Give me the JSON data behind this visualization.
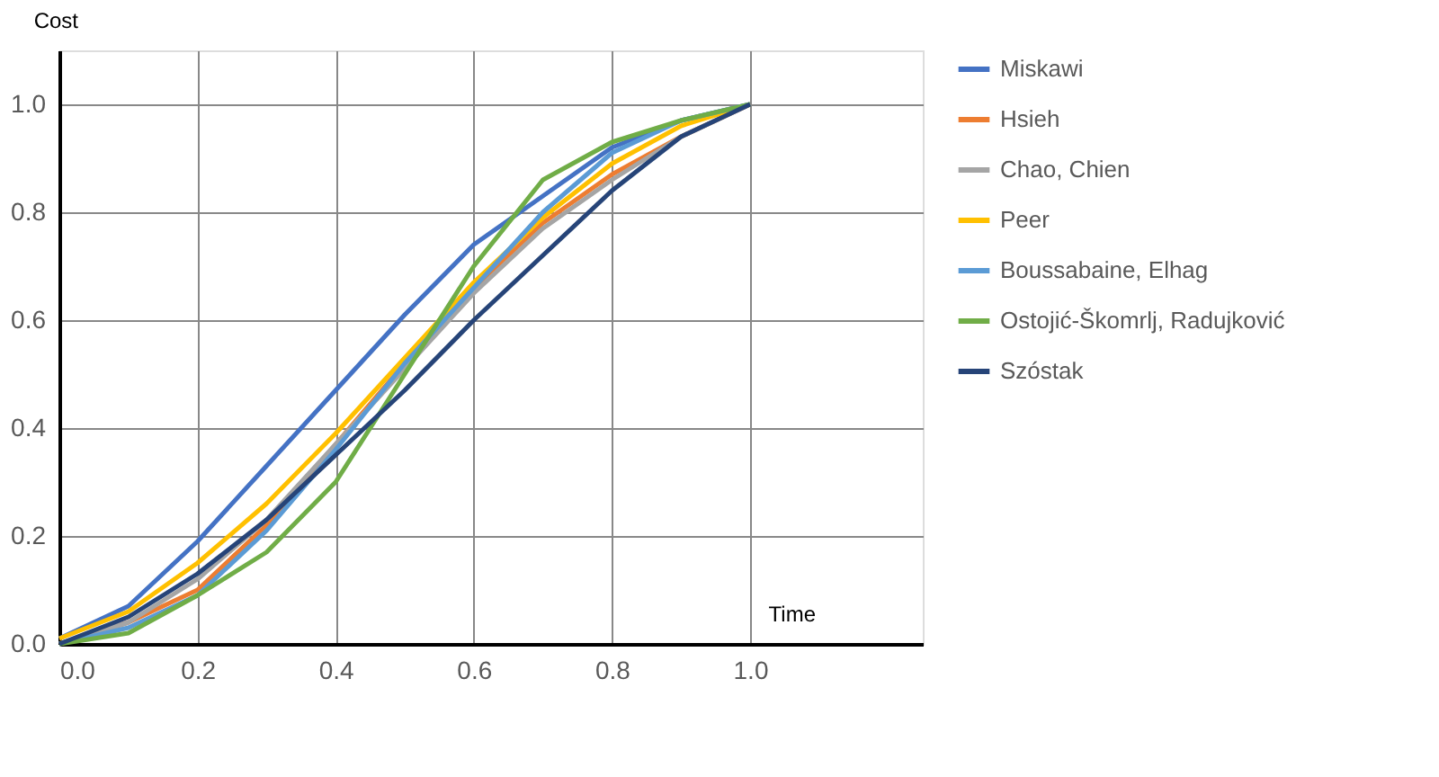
{
  "chart_data": {
    "type": "line",
    "xlabel": "Time",
    "ylabel": "Cost",
    "x": [
      0,
      0.1,
      0.2,
      0.3,
      0.4,
      0.5,
      0.6,
      0.7,
      0.8,
      0.9,
      1.0
    ],
    "series": [
      {
        "name": "Miskawi",
        "color": "#4472c4",
        "values": [
          0.01,
          0.07,
          0.19,
          0.33,
          0.47,
          0.61,
          0.74,
          0.83,
          0.92,
          0.97,
          1.0
        ]
      },
      {
        "name": "Hsieh",
        "color": "#ed7d31",
        "values": [
          0,
          0.04,
          0.1,
          0.22,
          0.37,
          0.52,
          0.66,
          0.78,
          0.87,
          0.94,
          1.0
        ]
      },
      {
        "name": "Chao, Chien",
        "color": "#a5a5a5",
        "values": [
          0,
          0.04,
          0.12,
          0.23,
          0.37,
          0.51,
          0.65,
          0.77,
          0.86,
          0.94,
          1.0
        ]
      },
      {
        "name": "Peer",
        "color": "#ffc000",
        "values": [
          0.01,
          0.06,
          0.15,
          0.26,
          0.39,
          0.53,
          0.67,
          0.79,
          0.89,
          0.96,
          1.0
        ]
      },
      {
        "name": "Boussabaine, Elhag",
        "color": "#5b9bd5",
        "values": [
          0,
          0.03,
          0.09,
          0.21,
          0.36,
          0.52,
          0.66,
          0.8,
          0.91,
          0.97,
          1.0
        ]
      },
      {
        "name": "Ostojić-Škomrlj, Radujković",
        "color": "#70ad47",
        "values": [
          0,
          0.02,
          0.09,
          0.17,
          0.3,
          0.5,
          0.7,
          0.86,
          0.93,
          0.97,
          1.0
        ]
      },
      {
        "name": "Szóstak",
        "color": "#264478",
        "values": [
          0,
          0.05,
          0.13,
          0.23,
          0.35,
          0.47,
          0.6,
          0.72,
          0.84,
          0.94,
          1.0
        ]
      }
    ],
    "xlim": [
      0,
      1.25
    ],
    "ylim": [
      0,
      1.1
    ],
    "xticks": [
      {
        "value": 0,
        "label": "0.0"
      },
      {
        "value": 0.2,
        "label": "0.2"
      },
      {
        "value": 0.4,
        "label": "0.4"
      },
      {
        "value": 0.6,
        "label": "0.6"
      },
      {
        "value": 0.8,
        "label": "0.8"
      },
      {
        "value": 1.0,
        "label": "1.0"
      }
    ],
    "yticks": [
      {
        "value": 0,
        "label": "0.0"
      },
      {
        "value": 0.2,
        "label": "0.2"
      },
      {
        "value": 0.4,
        "label": "0.4"
      },
      {
        "value": 0.6,
        "label": "0.6"
      },
      {
        "value": 0.8,
        "label": "0.8"
      },
      {
        "value": 1.0,
        "label": "1.0"
      }
    ],
    "grid": true,
    "legend": "right",
    "marker": "none",
    "line_style": "solid"
  }
}
